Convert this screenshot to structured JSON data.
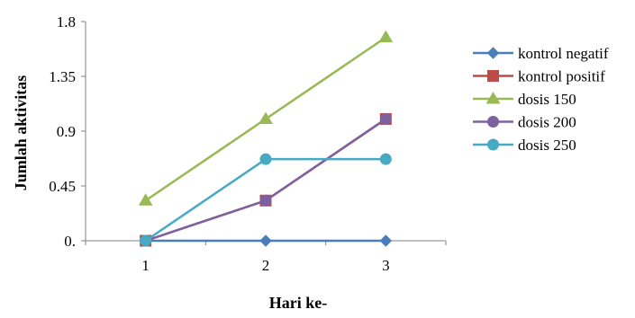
{
  "chart_data": {
    "type": "line",
    "x": [
      "1",
      "2",
      "3"
    ],
    "xlabel": "Hari ke-",
    "ylabel": "Jumlah aktivitas",
    "ylim": [
      0,
      1.8
    ],
    "yticks": [
      0,
      0.45,
      0.9,
      1.35,
      1.8
    ],
    "ytick_labels": [
      "0.",
      "0.45",
      "0.9",
      "1.35",
      "1.8"
    ],
    "grid": false,
    "legend_position": "right",
    "series": [
      {
        "name": "kontrol negatif",
        "values": [
          0,
          0,
          0
        ],
        "color": "#4A7EBB",
        "marker": "diamond"
      },
      {
        "name": "kontrol positif",
        "values": [
          0,
          0.33,
          1.0
        ],
        "color": "#BE4B48",
        "marker": "square"
      },
      {
        "name": "dosis 150",
        "values": [
          0.33,
          1.0,
          1.67
        ],
        "color": "#98B954",
        "marker": "triangle"
      },
      {
        "name": "dosis 200",
        "values": [
          0,
          0.33,
          1.0
        ],
        "color": "#7D60A0",
        "marker": "circle"
      },
      {
        "name": "dosis 250",
        "values": [
          0,
          0.67,
          0.67
        ],
        "color": "#46AAC5",
        "marker": "circle"
      }
    ]
  }
}
